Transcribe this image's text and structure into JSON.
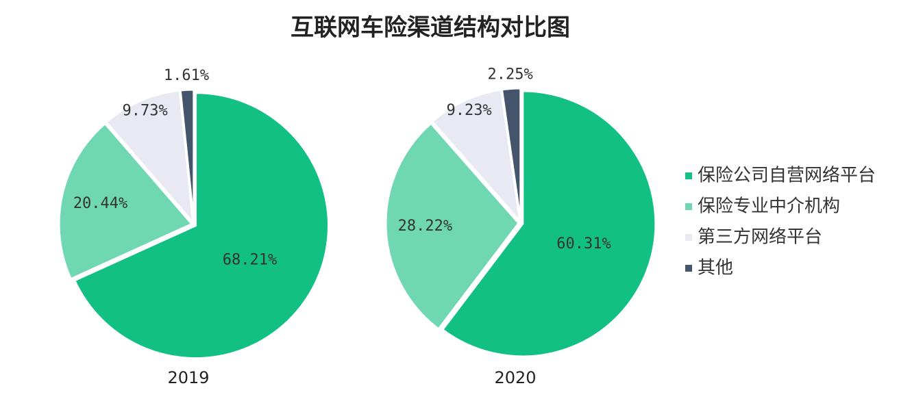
{
  "title": "互联网车险渠道结构对比图",
  "chart_data": [
    {
      "type": "pie",
      "label": "2019",
      "categories": [
        "保险公司自营网络平台",
        "保险专业中介机构",
        "第三方网络平台",
        "其他"
      ],
      "colors": [
        "#13c083",
        "#6fd8b2",
        "#e9e9f3",
        "#44546a"
      ],
      "values": [
        68.21,
        20.44,
        9.73,
        1.61
      ],
      "value_labels": [
        "68.21%",
        "20.44%",
        "9.73%",
        "1.61%"
      ]
    },
    {
      "type": "pie",
      "label": "2020",
      "categories": [
        "保险公司自营网络平台",
        "保险专业中介机构",
        "第三方网络平台",
        "其他"
      ],
      "colors": [
        "#13c083",
        "#6fd8b2",
        "#e9e9f3",
        "#44546a"
      ],
      "values": [
        60.31,
        28.22,
        9.23,
        2.25
      ],
      "value_labels": [
        "60.31%",
        "28.22%",
        "9.23%",
        "2.25%"
      ]
    }
  ]
}
